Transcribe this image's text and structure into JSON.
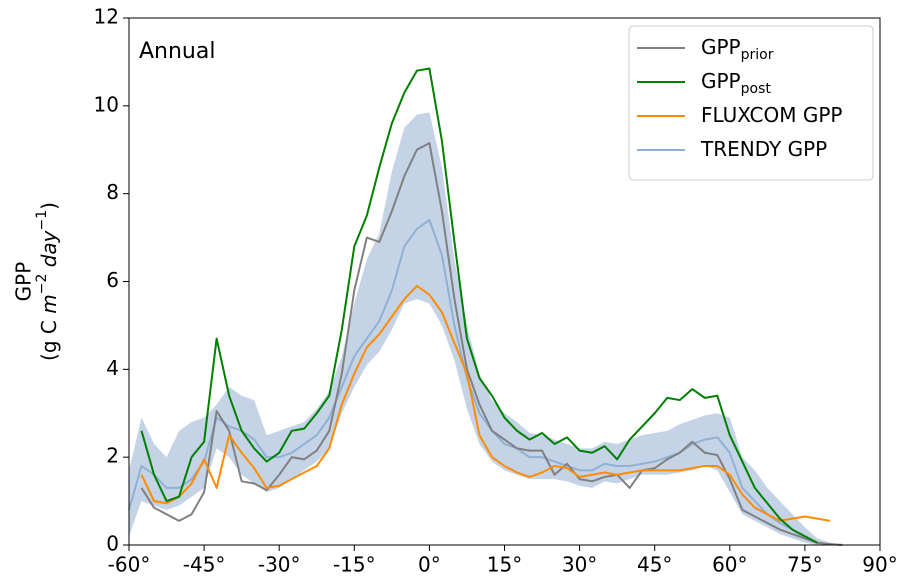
{
  "chart_data": {
    "type": "line",
    "annotation": "Annual",
    "ylabel": {
      "line1": "GPP",
      "line2": [
        "(g C ",
        "m",
        "−2",
        " day",
        "−1",
        ")"
      ]
    },
    "xlim": [
      -60,
      90
    ],
    "ylim": [
      0,
      12
    ],
    "xticks": [
      {
        "value": -60,
        "label": "-60°"
      },
      {
        "value": -45,
        "label": "-45°"
      },
      {
        "value": -30,
        "label": "-30°"
      },
      {
        "value": -15,
        "label": "-15°"
      },
      {
        "value": 0,
        "label": "0°"
      },
      {
        "value": 15,
        "label": "15°"
      },
      {
        "value": 30,
        "label": "30°"
      },
      {
        "value": 45,
        "label": "45°"
      },
      {
        "value": 60,
        "label": "60°"
      },
      {
        "value": 75,
        "label": "75°"
      },
      {
        "value": 90,
        "label": "90°"
      }
    ],
    "yticks": [
      0,
      2,
      4,
      6,
      8,
      10,
      12
    ],
    "legend": "upper right",
    "x": [
      -60,
      -57.5,
      -55,
      -52.5,
      -50,
      -47.5,
      -45,
      -42.5,
      -40,
      -37.5,
      -35,
      -32.5,
      -30,
      -27.5,
      -25,
      -22.5,
      -20,
      -17.5,
      -15,
      -12.5,
      -10,
      -7.5,
      -5,
      -2.5,
      0,
      2.5,
      5,
      7.5,
      10,
      12.5,
      15,
      17.5,
      20,
      22.5,
      25,
      27.5,
      30,
      32.5,
      35,
      37.5,
      40,
      42.5,
      45,
      47.5,
      50,
      52.5,
      55,
      57.5,
      60,
      62.5,
      65,
      67.5,
      70,
      72.5,
      75,
      77.5,
      80,
      82.5
    ],
    "series": [
      {
        "name": "GPP",
        "name_sub": "prior",
        "color": "#808080",
        "values": [
          null,
          1.3,
          0.85,
          0.7,
          0.55,
          0.7,
          1.2,
          3.05,
          2.6,
          1.45,
          1.4,
          1.25,
          1.6,
          2.0,
          1.95,
          2.15,
          2.6,
          3.9,
          5.8,
          7.0,
          6.9,
          7.6,
          8.4,
          9.0,
          9.15,
          7.6,
          5.6,
          4.0,
          3.2,
          2.6,
          2.4,
          2.2,
          2.15,
          2.15,
          1.6,
          1.85,
          1.5,
          1.45,
          1.55,
          1.6,
          1.3,
          1.7,
          1.75,
          1.95,
          2.1,
          2.35,
          2.1,
          2.05,
          1.5,
          0.8,
          0.65,
          0.5,
          0.35,
          0.25,
          0.15,
          0.05,
          0.02,
          0
        ]
      },
      {
        "name": "GPP",
        "name_sub": "post",
        "color": "#008000",
        "values": [
          null,
          2.6,
          1.6,
          1.0,
          1.1,
          2.0,
          2.35,
          4.7,
          3.4,
          2.6,
          2.2,
          1.9,
          2.1,
          2.6,
          2.65,
          3.0,
          3.4,
          4.9,
          6.8,
          7.5,
          8.6,
          9.6,
          10.3,
          10.8,
          10.85,
          9.2,
          6.9,
          4.7,
          3.8,
          3.4,
          2.9,
          2.6,
          2.4,
          2.55,
          2.3,
          2.45,
          2.15,
          2.1,
          2.25,
          1.95,
          2.4,
          2.7,
          3.0,
          3.35,
          3.3,
          3.55,
          3.35,
          3.4,
          2.5,
          1.9,
          1.3,
          0.95,
          0.6,
          0.35,
          0.2,
          0.05,
          null,
          null
        ]
      },
      {
        "name": "FLUXCOM GPP",
        "color": "#ff8c00",
        "values": [
          null,
          1.6,
          1.0,
          0.95,
          1.1,
          1.4,
          1.95,
          1.3,
          2.5,
          2.1,
          1.75,
          1.3,
          1.35,
          1.5,
          1.65,
          1.8,
          2.2,
          3.2,
          3.9,
          4.5,
          4.8,
          5.2,
          5.6,
          5.9,
          5.7,
          5.3,
          4.6,
          3.9,
          2.5,
          2.0,
          1.8,
          1.65,
          1.55,
          1.65,
          1.8,
          1.75,
          1.55,
          1.6,
          1.65,
          1.6,
          1.65,
          1.7,
          1.7,
          1.7,
          1.7,
          1.75,
          1.8,
          1.8,
          1.6,
          1.15,
          0.85,
          0.7,
          0.55,
          0.6,
          0.65,
          0.6,
          0.55,
          null
        ]
      },
      {
        "name": "TRENDY GPP",
        "color": "#8fb1d3",
        "band_color": "#b0c4de",
        "values": [
          0.8,
          1.8,
          1.6,
          1.3,
          1.3,
          1.5,
          1.9,
          2.9,
          2.7,
          2.6,
          2.4,
          2.0,
          2.0,
          2.1,
          2.3,
          2.5,
          2.9,
          3.6,
          4.3,
          4.7,
          5.1,
          5.8,
          6.8,
          7.2,
          7.4,
          6.6,
          5.0,
          3.8,
          3.0,
          2.6,
          2.3,
          2.2,
          2.0,
          2.0,
          1.9,
          1.8,
          1.7,
          1.7,
          1.85,
          1.8,
          1.8,
          1.85,
          1.9,
          2.0,
          2.1,
          2.3,
          2.4,
          2.45,
          2.1,
          1.3,
          1.0,
          0.7,
          0.5,
          0.35,
          0.15,
          0.05,
          0.02,
          0
        ],
        "low": [
          0.2,
          1.0,
          0.9,
          0.8,
          0.9,
          1.1,
          1.3,
          2.2,
          2.0,
          1.6,
          1.4,
          1.2,
          1.3,
          1.5,
          1.7,
          1.9,
          2.2,
          3.0,
          3.6,
          4.1,
          4.4,
          4.9,
          5.5,
          5.6,
          5.5,
          5.0,
          4.2,
          3.1,
          2.3,
          1.9,
          1.7,
          1.6,
          1.5,
          1.5,
          1.5,
          1.45,
          1.35,
          1.3,
          1.45,
          1.4,
          1.5,
          1.6,
          1.6,
          1.6,
          1.65,
          1.7,
          1.8,
          1.7,
          1.2,
          0.7,
          0.55,
          0.4,
          0.25,
          0.15,
          0.05,
          0,
          0,
          0
        ],
        "high": [
          1.7,
          2.9,
          2.3,
          2.0,
          2.6,
          2.8,
          2.9,
          3.2,
          3.6,
          3.4,
          3.3,
          2.5,
          2.6,
          2.7,
          2.8,
          3.1,
          3.5,
          4.3,
          5.5,
          6.5,
          7.1,
          8.5,
          9.5,
          9.8,
          9.85,
          8.6,
          6.5,
          5.0,
          3.9,
          3.3,
          3.0,
          2.8,
          2.55,
          2.5,
          2.4,
          2.3,
          2.2,
          2.2,
          2.35,
          2.3,
          2.4,
          2.5,
          2.55,
          2.6,
          2.75,
          2.85,
          2.95,
          3.0,
          2.9,
          2.0,
          1.7,
          1.3,
          1.0,
          0.7,
          0.4,
          0.15,
          0.05,
          0
        ]
      }
    ]
  }
}
